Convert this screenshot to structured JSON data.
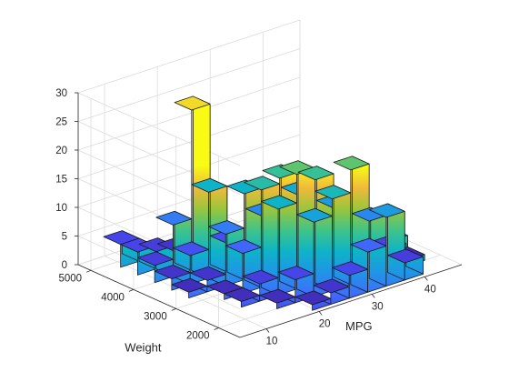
{
  "chart_data": {
    "type": "bar3d-histogram",
    "xlabel": "MPG",
    "ylabel": "Weight",
    "zlabel": "",
    "title": "",
    "x_ticks": [
      10,
      20,
      30,
      40
    ],
    "y_ticks": [
      2000,
      3000,
      4000,
      5000
    ],
    "z_ticks": [
      0,
      5,
      10,
      15,
      20,
      25,
      30
    ],
    "xlim": [
      5,
      47
    ],
    "ylim": [
      1500,
      5300
    ],
    "zlim": [
      0,
      30
    ],
    "grid": true,
    "colormap": "parula",
    "x_edges": [
      9,
      12.5,
      16,
      19.5,
      23,
      26.5,
      30,
      33.5,
      37,
      40.5,
      44
    ],
    "y_edges": [
      1600,
      2000,
      2400,
      2800,
      3200,
      3600,
      4000,
      4400,
      4800,
      5200
    ],
    "counts": [
      [
        0,
        0,
        0,
        0,
        1,
        2,
        3,
        4,
        4
      ],
      [
        0,
        0,
        1,
        1,
        2,
        5,
        9,
        3,
        0
      ],
      [
        0,
        1,
        3,
        7,
        9,
        15,
        28,
        2,
        0
      ],
      [
        1,
        4,
        15,
        17,
        15,
        5,
        0,
        0,
        0
      ],
      [
        2,
        13,
        20,
        18,
        10,
        1,
        0,
        0,
        0
      ],
      [
        4,
        16,
        18,
        14,
        3,
        0,
        0,
        0,
        0
      ],
      [
        7,
        20,
        12,
        4,
        0,
        0,
        0,
        0,
        0
      ],
      [
        12,
        10,
        2,
        0,
        0,
        0,
        0,
        0,
        0
      ],
      [
        3,
        4,
        2,
        1,
        0,
        0,
        0,
        0,
        0
      ],
      [
        0,
        1,
        3,
        0,
        0,
        0,
        0,
        0,
        0
      ]
    ]
  }
}
